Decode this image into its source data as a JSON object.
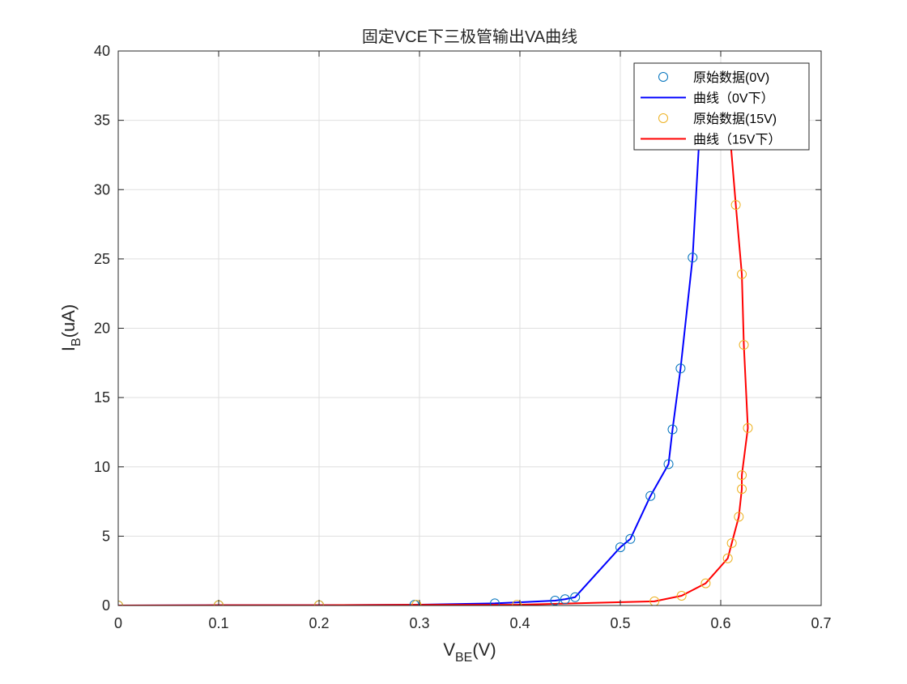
{
  "chart_data": {
    "type": "line",
    "title": "固定VCE下三极管输出VA曲线",
    "xlabel": {
      "main": "V",
      "sub": "BE",
      "suffix": "(V)"
    },
    "ylabel": {
      "main": "I",
      "sub": "B",
      "suffix": "(uA)"
    },
    "xlim": [
      0,
      0.7
    ],
    "ylim": [
      0,
      40
    ],
    "xticks": [
      0,
      0.1,
      0.2,
      0.3,
      0.4,
      0.5,
      0.6,
      0.7
    ],
    "xtick_labels": [
      "0",
      "0.1",
      "0.2",
      "0.3",
      "0.4",
      "0.5",
      "0.6",
      "0.7"
    ],
    "yticks": [
      0,
      5,
      10,
      15,
      20,
      25,
      30,
      35,
      40
    ],
    "ytick_labels": [
      "0",
      "5",
      "10",
      "15",
      "20",
      "25",
      "30",
      "35",
      "40"
    ],
    "grid": true,
    "legend_position": "top-right",
    "series": [
      {
        "name": "原始数据(0V)",
        "kind": "markers",
        "color": "#0072BD",
        "x": [
          0,
          0.1,
          0.2,
          0.295,
          0.375,
          0.435,
          0.445,
          0.455,
          0.5,
          0.51,
          0.53,
          0.548,
          0.552,
          0.56,
          0.572,
          0.58
        ],
        "y": [
          0,
          0.02,
          0.02,
          0.05,
          0.15,
          0.35,
          0.45,
          0.6,
          4.2,
          4.8,
          7.9,
          10.2,
          12.7,
          17.1,
          25.1,
          35.5
        ]
      },
      {
        "name": "曲线（0V下）",
        "kind": "line",
        "color": "#0000FF",
        "x": [
          0,
          0.1,
          0.2,
          0.295,
          0.375,
          0.435,
          0.445,
          0.455,
          0.5,
          0.51,
          0.53,
          0.548,
          0.552,
          0.56,
          0.572,
          0.58
        ],
        "y": [
          0,
          0.02,
          0.02,
          0.05,
          0.15,
          0.35,
          0.45,
          0.6,
          4.2,
          4.8,
          7.9,
          10.2,
          12.7,
          17.1,
          25.1,
          35.5
        ]
      },
      {
        "name": "原始数据(15V)",
        "kind": "markers",
        "color": "#EDB120",
        "x": [
          0,
          0.1,
          0.2,
          0.297,
          0.397,
          0.534,
          0.561,
          0.585,
          0.607,
          0.611,
          0.618,
          0.621,
          0.621,
          0.627,
          0.623,
          0.621,
          0.615,
          0.608
        ],
        "y": [
          0,
          0.02,
          0.02,
          0.05,
          0.05,
          0.3,
          0.7,
          1.6,
          3.4,
          4.5,
          6.4,
          8.4,
          9.4,
          12.8,
          18.8,
          23.9,
          28.9,
          35.0
        ]
      },
      {
        "name": "曲线（15V下）",
        "kind": "line",
        "color": "#FF0000",
        "x": [
          0,
          0.1,
          0.2,
          0.297,
          0.397,
          0.534,
          0.561,
          0.585,
          0.607,
          0.611,
          0.618,
          0.621,
          0.621,
          0.627,
          0.623,
          0.621,
          0.615,
          0.608
        ],
        "y": [
          0,
          0.02,
          0.02,
          0.05,
          0.05,
          0.3,
          0.7,
          1.6,
          3.4,
          4.5,
          6.4,
          8.4,
          9.4,
          12.8,
          18.8,
          23.9,
          28.9,
          35.0
        ]
      }
    ]
  }
}
